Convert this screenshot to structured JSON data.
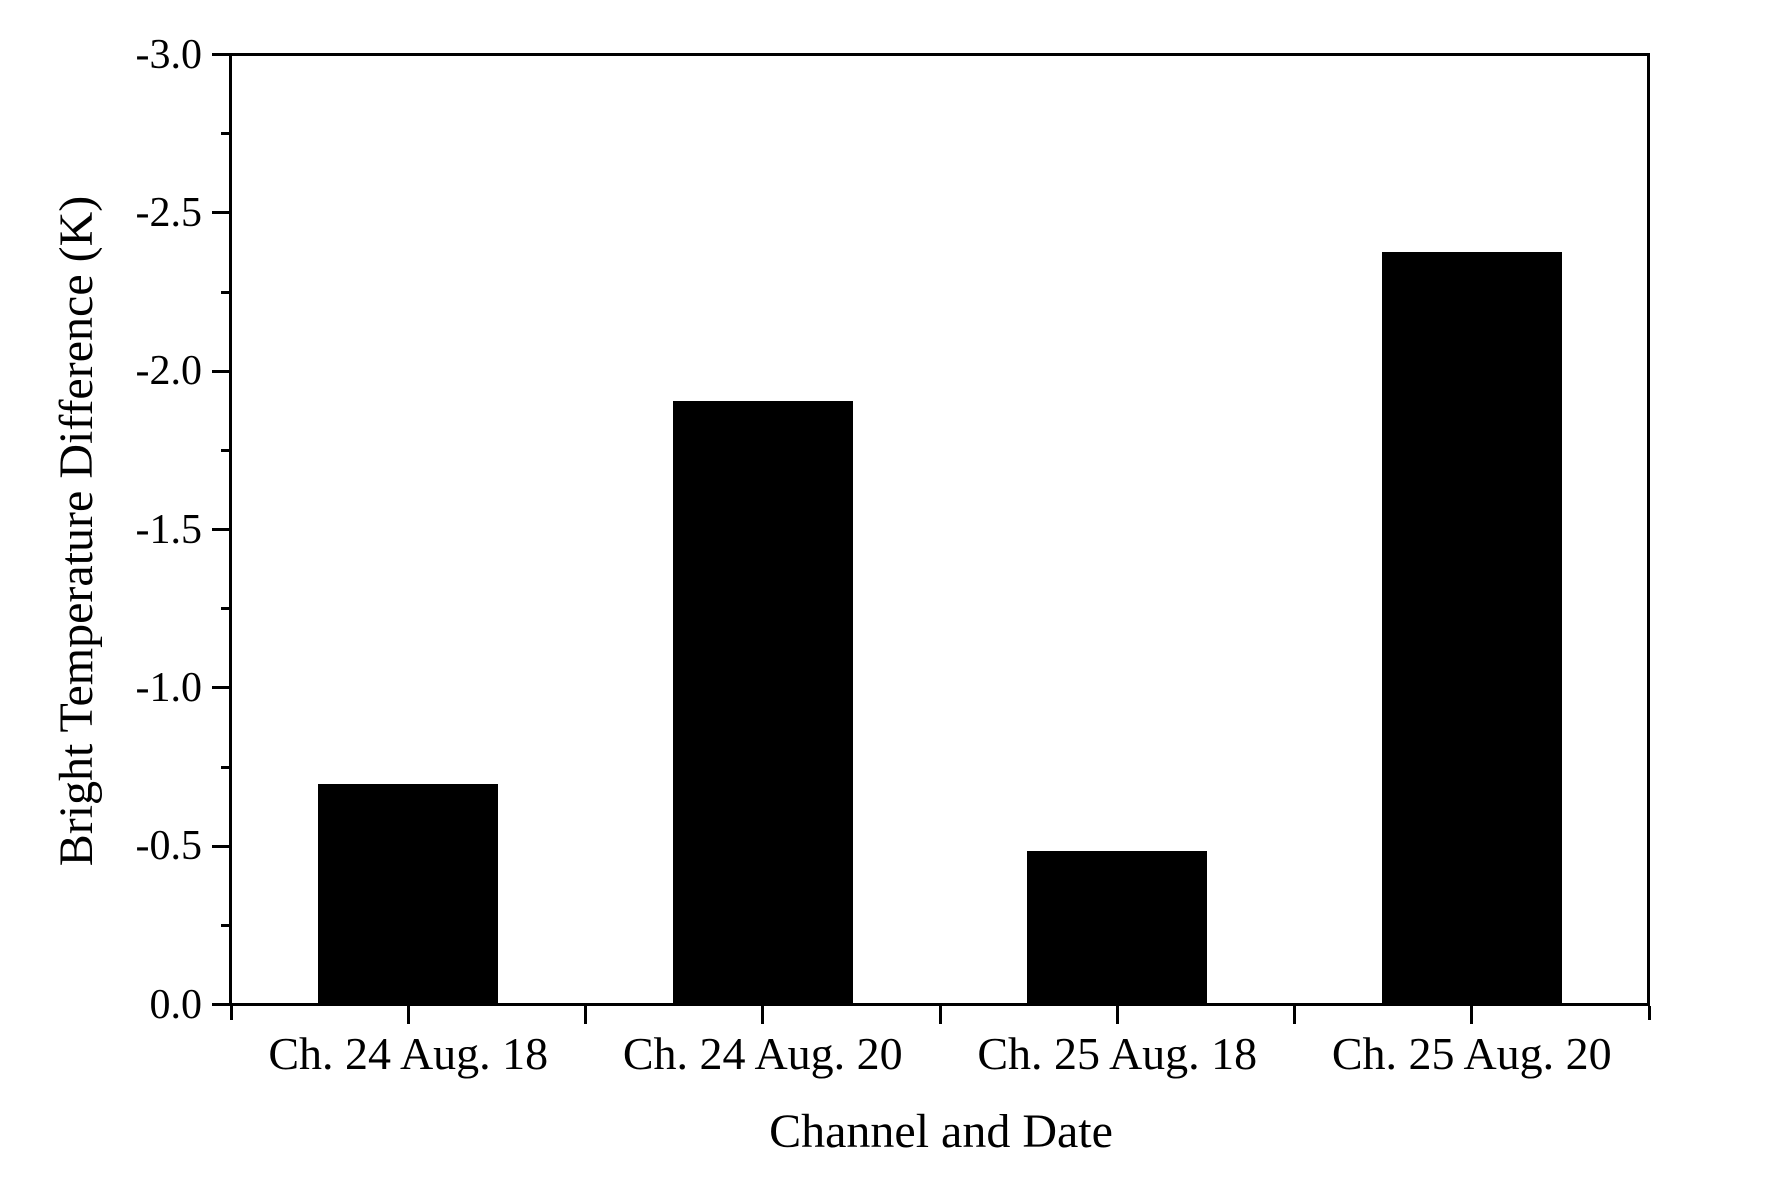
{
  "chart_data": {
    "type": "bar",
    "title": "",
    "categories": [
      "Ch. 24 Aug. 18",
      "Ch. 24 Aug. 20",
      "Ch. 25 Aug. 18",
      "Ch. 25 Aug. 20"
    ],
    "values": [
      -0.69,
      -1.9,
      -0.48,
      -2.37
    ],
    "xlabel": "Channel and Date",
    "ylabel": "Bright Temperature Difference (K)",
    "ylim": [
      0.0,
      -3.0
    ],
    "y_axis_inverted": true,
    "y_major_tick_labels_bottom_to_top": [
      "0.0",
      "-0.5",
      "-1.0",
      "-1.5",
      "-2.0",
      "-2.5",
      "-3.0"
    ],
    "y_major_step": 0.5,
    "y_minor_step": 0.25,
    "bar_color": "#000000",
    "axis_color": "#000000",
    "background_color": "#ffffff",
    "grid": false,
    "legend": false
  }
}
